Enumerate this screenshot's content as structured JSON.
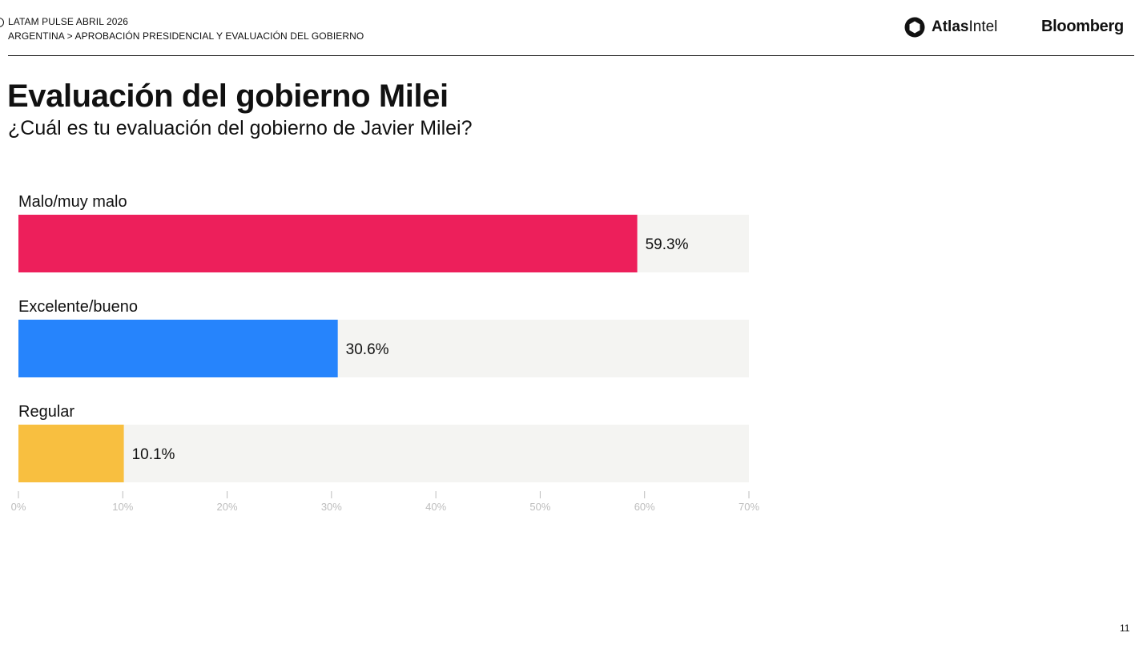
{
  "header": {
    "kicker": "LATAM PULSE ABRIL 2026",
    "breadcrumb": "ARGENTINA > APROBACIÓN PRESIDENCIAL Y EVALUACIÓN DEL GOBIERNO",
    "brand_atlas_bold": "Atlas",
    "brand_atlas_light": "Intel",
    "brand_bloomberg": "Bloomberg"
  },
  "page_number": "11",
  "colors": {
    "bad": "#ED1F5B",
    "good": "#2684FC",
    "regular": "#F8BF40",
    "track": "#F4F4F2",
    "axis": "#BDBDBD"
  },
  "chart_data": {
    "type": "bar",
    "orientation": "horizontal",
    "title": "Evaluación del gobierno Milei",
    "subtitle": "¿Cuál es tu evaluación del gobierno de Javier Milei?",
    "categories": [
      "Malo/muy malo",
      "Excelente/bueno",
      "Regular"
    ],
    "values": [
      59.3,
      30.6,
      10.1
    ],
    "value_labels": [
      "59.3%",
      "30.6%",
      "10.1%"
    ],
    "bar_colors": [
      "#ED1F5B",
      "#2684FC",
      "#F8BF40"
    ],
    "xlim": [
      0,
      70
    ],
    "x_ticks": [
      0,
      10,
      20,
      30,
      40,
      50,
      60,
      70
    ],
    "x_tick_labels": [
      "0%",
      "10%",
      "20%",
      "30%",
      "40%",
      "50%",
      "60%",
      "70%"
    ],
    "grid": false,
    "legend": "none"
  }
}
